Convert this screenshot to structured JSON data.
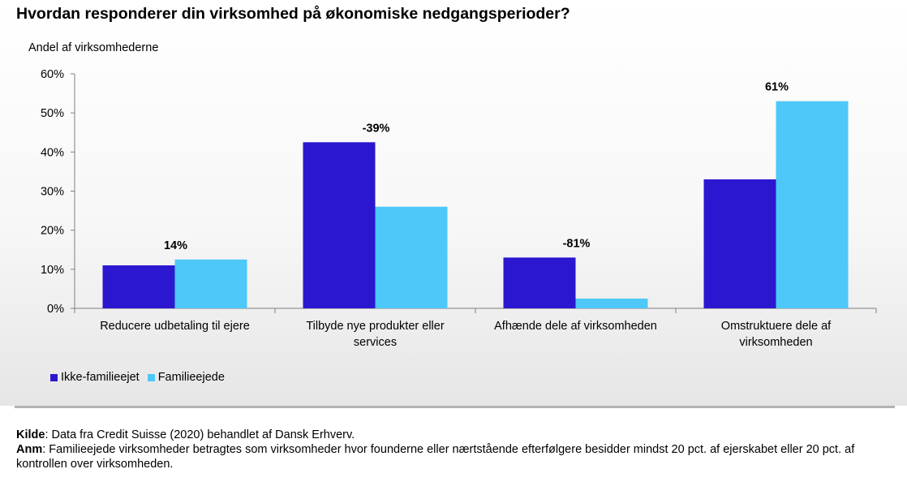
{
  "title": "Hvordan responderer din virksomhed på økonomiske nedgangsperioder?",
  "colors": {
    "ikke_familieejet": "#2b17cf",
    "familieejede": "#4ec8f8"
  },
  "chart_data": {
    "type": "bar",
    "ylabel": "Andel af virksomhederne",
    "ylim": [
      0,
      60
    ],
    "yticks": [
      {
        "value": 0,
        "label": "0%"
      },
      {
        "value": 10,
        "label": "10%"
      },
      {
        "value": 20,
        "label": "20%"
      },
      {
        "value": 30,
        "label": "30%"
      },
      {
        "value": 40,
        "label": "40%"
      },
      {
        "value": 50,
        "label": "50%"
      },
      {
        "value": 60,
        "label": "60%"
      }
    ],
    "categories": [
      [
        "Reducere udbetaling til ejere"
      ],
      [
        "Tilbyde nye produkter eller",
        "services"
      ],
      [
        "Afhænde dele af virksomheden"
      ],
      [
        "Omstruktuere dele af",
        "virksomheden"
      ]
    ],
    "series": [
      {
        "name": "Ikke-familieejet",
        "values": [
          11,
          42.5,
          13,
          33
        ]
      },
      {
        "name": "Familieejede",
        "values": [
          12.5,
          26,
          2.5,
          53
        ]
      }
    ],
    "annotations": [
      "14%",
      "-39%",
      "-81%",
      "61%"
    ],
    "legend_position": "bottom-left",
    "grid": false
  },
  "footer": {
    "source_label": "Kilde",
    "source_text": ": Data fra Credit Suisse (2020) behandlet af Dansk Erhverv.",
    "note_label": "Anm",
    "note_text": ": Familieejede virksomheder betragtes som virksomheder hvor founderne eller nærtstående efterfølgere besidder mindst 20 pct. af ejerskabet eller 20 pct. af kontrollen over virksomheden."
  }
}
